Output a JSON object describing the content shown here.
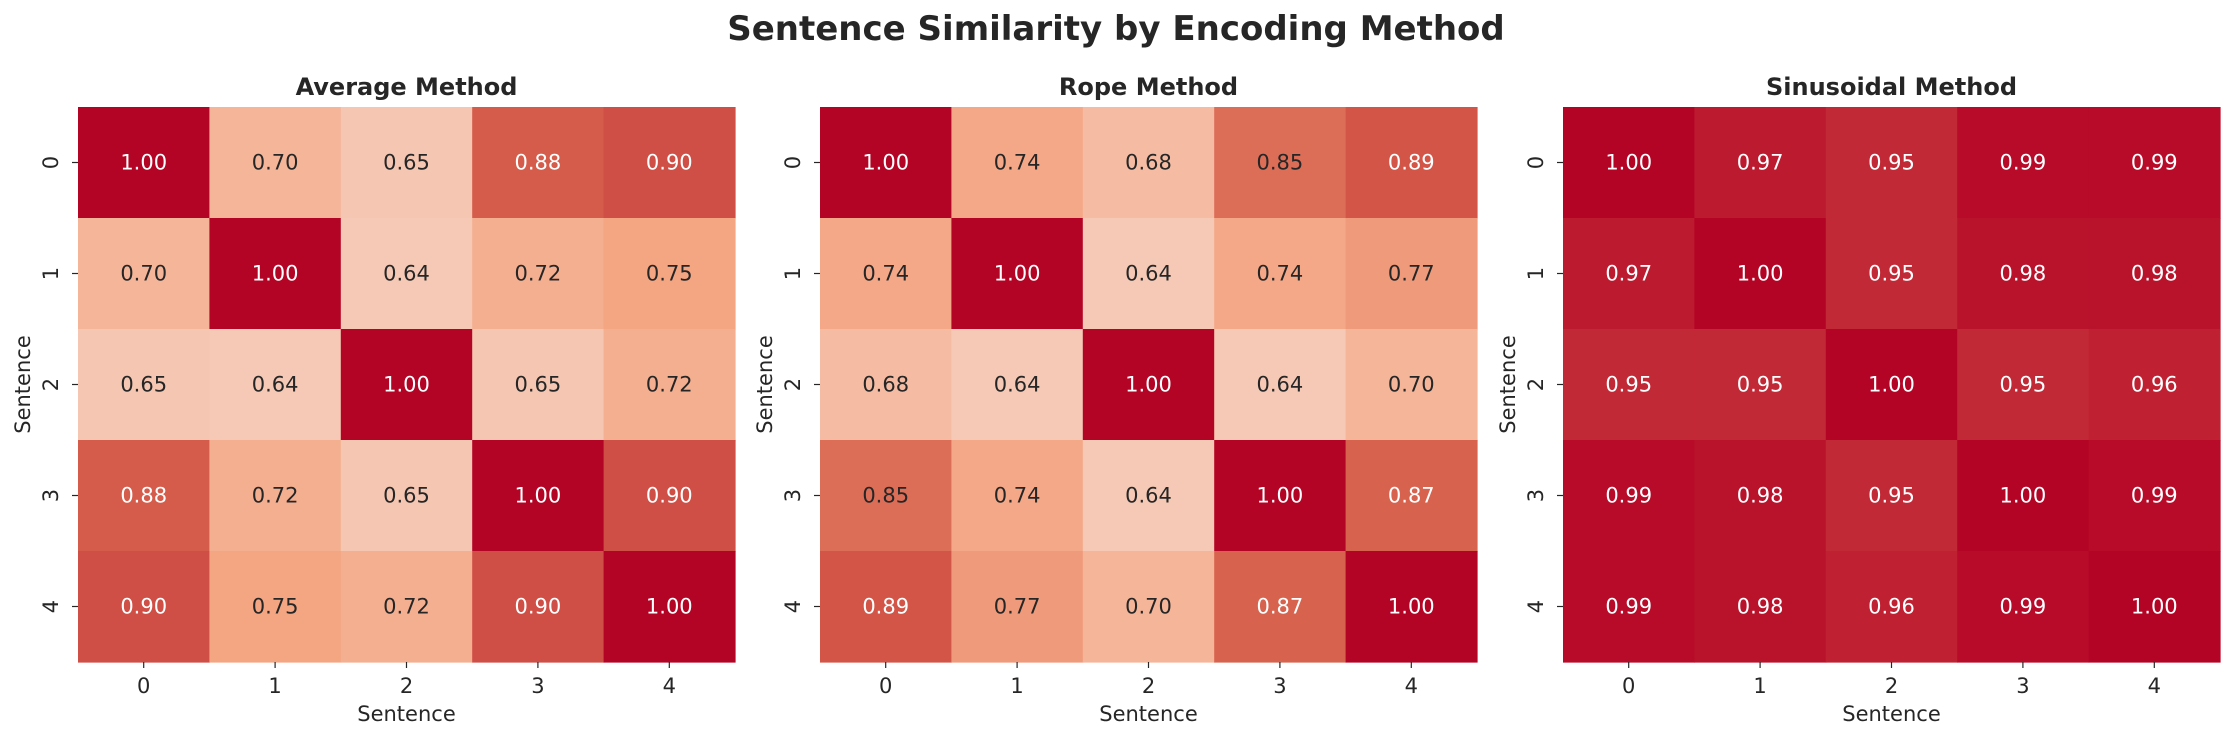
{
  "figure": {
    "title": "Sentence Similarity by Encoding Method"
  },
  "colors": {
    "low": "#f7f7f7",
    "mid": "#f4a582",
    "high": "#b2182b",
    "light_text": "#ffffff",
    "dark_text": "#262626"
  },
  "chart_data": [
    {
      "type": "heatmap",
      "title": "Average Method",
      "xlabel": "Sentence",
      "ylabel": "Sentence",
      "x_ticks": [
        "0",
        "1",
        "2",
        "3",
        "4"
      ],
      "y_ticks": [
        "0",
        "1",
        "2",
        "3",
        "4"
      ],
      "color_range": [
        0.5,
        1.0
      ],
      "colorbar": false,
      "annotations": [
        [
          "1.00",
          "0.70",
          "0.65",
          "0.88",
          "0.90"
        ],
        [
          "0.70",
          "1.00",
          "0.64",
          "0.72",
          "0.75"
        ],
        [
          "0.65",
          "0.64",
          "1.00",
          "0.65",
          "0.72"
        ],
        [
          "0.88",
          "0.72",
          "0.65",
          "1.00",
          "0.90"
        ],
        [
          "0.90",
          "0.75",
          "0.72",
          "0.90",
          "1.00"
        ]
      ]
    },
    {
      "type": "heatmap",
      "title": "Rope Method",
      "xlabel": "Sentence",
      "ylabel": "Sentence",
      "x_ticks": [
        "0",
        "1",
        "2",
        "3",
        "4"
      ],
      "y_ticks": [
        "0",
        "1",
        "2",
        "3",
        "4"
      ],
      "color_range": [
        0.5,
        1.0
      ],
      "colorbar": false,
      "annotations": [
        [
          "1.00",
          "0.74",
          "0.68",
          "0.85",
          "0.89"
        ],
        [
          "0.74",
          "1.00",
          "0.64",
          "0.74",
          "0.77"
        ],
        [
          "0.68",
          "0.64",
          "1.00",
          "0.64",
          "0.70"
        ],
        [
          "0.85",
          "0.74",
          "0.64",
          "1.00",
          "0.87"
        ],
        [
          "0.89",
          "0.77",
          "0.70",
          "0.87",
          "1.00"
        ]
      ]
    },
    {
      "type": "heatmap",
      "title": "Sinusoidal Method",
      "xlabel": "Sentence",
      "ylabel": "Sentence",
      "x_ticks": [
        "0",
        "1",
        "2",
        "3",
        "4"
      ],
      "y_ticks": [
        "0",
        "1",
        "2",
        "3",
        "4"
      ],
      "color_range": [
        0.5,
        1.0
      ],
      "colorbar": false,
      "annotations": [
        [
          "1.00",
          "0.97",
          "0.95",
          "0.99",
          "0.99"
        ],
        [
          "0.97",
          "1.00",
          "0.95",
          "0.98",
          "0.98"
        ],
        [
          "0.95",
          "0.95",
          "1.00",
          "0.95",
          "0.96"
        ],
        [
          "0.99",
          "0.98",
          "0.95",
          "1.00",
          "0.99"
        ],
        [
          "0.99",
          "0.98",
          "0.96",
          "0.99",
          "1.00"
        ]
      ]
    }
  ]
}
